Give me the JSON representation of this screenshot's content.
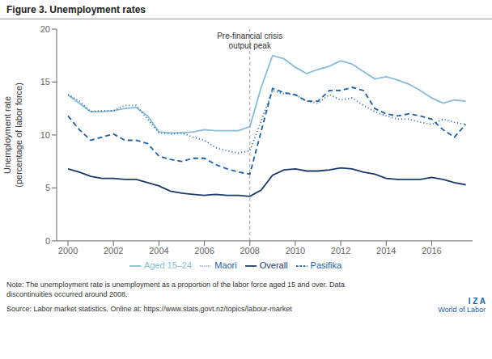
{
  "chart_data": {
    "type": "line",
    "title": "Figure 3. Unemployment rates",
    "y_label": "Unemployment rate\n(percentage of labor force)",
    "xlim": [
      1999.5,
      2017.8
    ],
    "xticks": [
      2000,
      2002,
      2004,
      2006,
      2008,
      2010,
      2012,
      2014,
      2016
    ],
    "ylim": [
      0,
      20
    ],
    "yticks": [
      0,
      5,
      10,
      15,
      20
    ],
    "grid": false,
    "legend": "bottom",
    "series": [
      {
        "name": "Overall",
        "color": "#1a3a6b",
        "line_style": "solid",
        "x": [
          2000,
          2000.5,
          2001,
          2001.5,
          2002,
          2002.5,
          2003,
          2003.5,
          2004,
          2004.5,
          2005,
          2005.5,
          2006,
          2006.5,
          2007,
          2007.5,
          2008,
          2008.5,
          2009,
          2009.5,
          2010,
          2010.5,
          2011,
          2011.5,
          2012,
          2012.5,
          2013,
          2013.5,
          2014,
          2014.5,
          2015,
          2015.5,
          2016,
          2016.5,
          2017,
          2017.5
        ],
        "values": [
          6.8,
          6.5,
          6.1,
          5.9,
          5.9,
          5.8,
          5.8,
          5.5,
          5.2,
          4.7,
          4.5,
          4.4,
          4.3,
          4.4,
          4.3,
          4.3,
          4.2,
          4.8,
          6.2,
          6.7,
          6.8,
          6.6,
          6.6,
          6.7,
          6.9,
          6.8,
          6.5,
          6.3,
          5.9,
          5.8,
          5.8,
          5.8,
          6.0,
          5.8,
          5.5,
          5.3
        ]
      },
      {
        "name": "Aged 15–24",
        "color": "#87bdd8",
        "line_style": "solid",
        "x": [
          2000,
          2000.5,
          2001,
          2001.5,
          2002,
          2002.5,
          2003,
          2003.5,
          2004,
          2004.5,
          2005,
          2005.5,
          2006,
          2006.5,
          2007,
          2007.5,
          2008,
          2008.5,
          2009,
          2009.5,
          2010,
          2010.5,
          2011,
          2011.5,
          2012,
          2012.5,
          2013,
          2013.5,
          2014,
          2014.5,
          2015,
          2015.5,
          2016,
          2016.5,
          2017,
          2017.5
        ],
        "values": [
          13.8,
          13.0,
          12.2,
          12.2,
          12.3,
          12.5,
          12.6,
          11.8,
          10.3,
          10.2,
          10.2,
          10.3,
          10.5,
          10.4,
          10.4,
          10.4,
          10.8,
          14.5,
          17.5,
          17.2,
          16.4,
          15.8,
          16.2,
          16.5,
          17.0,
          16.7,
          16.0,
          15.3,
          15.5,
          15.2,
          14.8,
          14.2,
          13.5,
          13.0,
          13.3,
          13.2
        ]
      },
      {
        "name": "Maori",
        "color": "#1a5fa8",
        "line_style": "dotted",
        "x": [
          2000,
          2000.5,
          2001,
          2001.5,
          2002,
          2002.5,
          2003,
          2003.5,
          2004,
          2004.5,
          2005,
          2005.5,
          2006,
          2006.5,
          2007,
          2007.5,
          2008,
          2009,
          2009.5,
          2010,
          2010.5,
          2011,
          2011.5,
          2012,
          2012.5,
          2013,
          2013.5,
          2014,
          2014.5,
          2015,
          2015.5,
          2016,
          2016.5,
          2017,
          2017.5
        ],
        "values": [
          13.8,
          13.2,
          12.2,
          12.3,
          12.3,
          12.8,
          12.8,
          11.5,
          10.2,
          10.1,
          10.2,
          9.8,
          9.5,
          8.8,
          8.5,
          8.3,
          8.5,
          14.2,
          13.9,
          13.8,
          13.2,
          13.0,
          13.8,
          13.3,
          13.5,
          12.8,
          12.2,
          11.8,
          11.5,
          11.5,
          11.2,
          11.0,
          11.5,
          11.2,
          11.0
        ]
      },
      {
        "name": "Pasifika",
        "color": "#1a5fa8",
        "line_style": "dashed",
        "x": [
          2000,
          2000.5,
          2001,
          2001.5,
          2002,
          2002.5,
          2003,
          2003.5,
          2004,
          2004.5,
          2005,
          2005.5,
          2006,
          2006.5,
          2007,
          2007.5,
          2008,
          2009,
          2009.5,
          2010,
          2010.5,
          2011,
          2011.5,
          2012,
          2012.5,
          2013,
          2013.5,
          2014,
          2014.5,
          2015,
          2015.5,
          2016,
          2016.5,
          2017,
          2017.5
        ],
        "values": [
          11.8,
          10.5,
          9.5,
          9.8,
          10.1,
          9.5,
          9.5,
          9.2,
          8.0,
          7.7,
          7.5,
          7.8,
          7.8,
          7.2,
          6.8,
          6.5,
          6.3,
          14.4,
          14.0,
          13.8,
          13.2,
          13.2,
          14.2,
          14.2,
          14.5,
          14.2,
          12.5,
          12.0,
          11.8,
          12.0,
          11.8,
          11.5,
          10.5,
          9.8,
          11.0
        ]
      }
    ],
    "annotations": [
      {
        "text": "Pre-financial crisis\noutput peak",
        "x": 2008
      }
    ],
    "notes": [
      "Note: The unemployment rate is unemployment as a proportion of the labor force aged 15 and over. Data\ndiscontinuities occurred around 2008.",
      "Source: Labor market statistics. Online at: https://www.stats.govt.nz/topics/labour-market"
    ],
    "branding": [
      "I Z A",
      "World of Labor"
    ]
  }
}
